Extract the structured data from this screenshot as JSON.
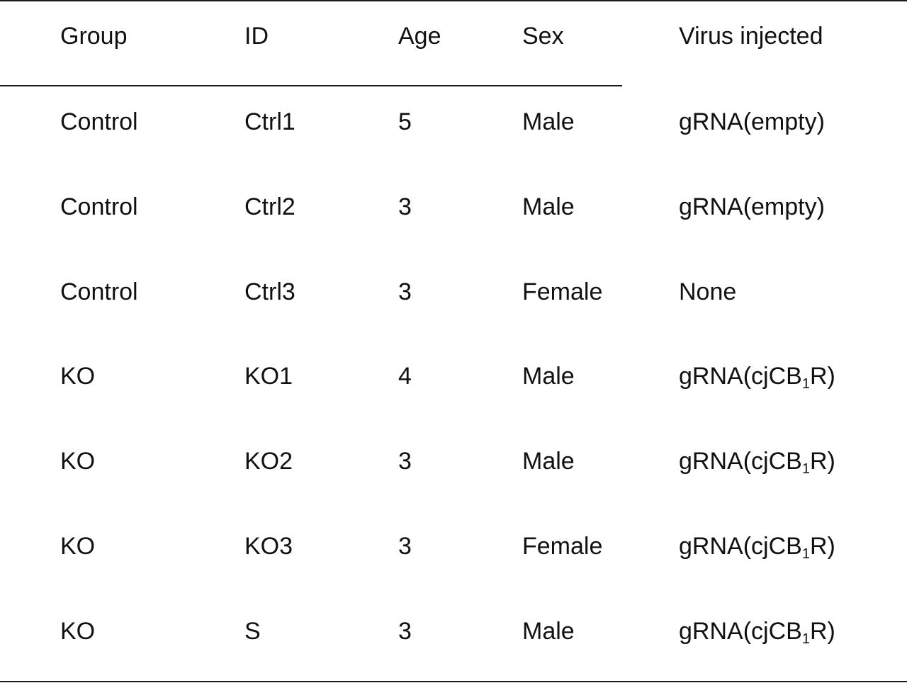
{
  "table": {
    "headers": [
      "Group",
      "ID",
      "Age",
      "Sex",
      "Virus injected"
    ],
    "rows": [
      {
        "group": "Control",
        "id": "Ctrl1",
        "age": "5",
        "sex": "Male",
        "virus": {
          "pre": "gRNA(empty)",
          "sub": "",
          "post": ""
        }
      },
      {
        "group": "Control",
        "id": "Ctrl2",
        "age": "3",
        "sex": "Male",
        "virus": {
          "pre": "gRNA(empty)",
          "sub": "",
          "post": ""
        }
      },
      {
        "group": "Control",
        "id": "Ctrl3",
        "age": "3",
        "sex": "Female",
        "virus": {
          "pre": "None",
          "sub": "",
          "post": ""
        }
      },
      {
        "group": "KO",
        "id": "KO1",
        "age": "4",
        "sex": "Male",
        "virus": {
          "pre": "gRNA(cjCB",
          "sub": "1",
          "post": "R)"
        }
      },
      {
        "group": "KO",
        "id": "KO2",
        "age": "3",
        "sex": "Male",
        "virus": {
          "pre": "gRNA(cjCB",
          "sub": "1",
          "post": "R)"
        }
      },
      {
        "group": "KO",
        "id": "KO3",
        "age": "3",
        "sex": "Female",
        "virus": {
          "pre": "gRNA(cjCB",
          "sub": "1",
          "post": "R)"
        }
      },
      {
        "group": "KO",
        "id": "S",
        "age": "3",
        "sex": "Male",
        "virus": {
          "pre": "gRNA(cjCB",
          "sub": "1",
          "post": "R)"
        }
      }
    ]
  }
}
